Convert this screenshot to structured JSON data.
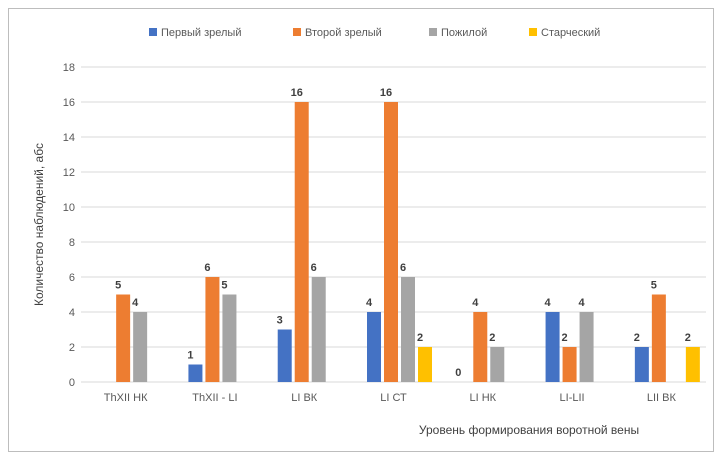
{
  "chart_data": {
    "type": "bar",
    "title": "",
    "xlabel": "Уровень формирования воротной вены",
    "ylabel": "Количество наблюдений, абс",
    "ylim": [
      0,
      18
    ],
    "yticks": [
      0,
      2,
      4,
      6,
      8,
      10,
      12,
      14,
      16,
      18
    ],
    "grid": true,
    "legend_position": "top",
    "categories": [
      "ThXII НК",
      "ThXII - LI",
      "LI ВК",
      "LI СТ",
      "LI НК",
      "LI-LII",
      "LII ВК"
    ],
    "series": [
      {
        "name": "Первый зрелый",
        "color": "#4472C4",
        "values": [
          null,
          1,
          3,
          4,
          0,
          4,
          2
        ]
      },
      {
        "name": "Второй зрелый",
        "color": "#ED7D31",
        "values": [
          5,
          6,
          16,
          16,
          4,
          2,
          5
        ]
      },
      {
        "name": "Пожилой",
        "color": "#A5A5A5",
        "values": [
          4,
          5,
          6,
          6,
          2,
          4,
          null
        ]
      },
      {
        "name": "Старческий",
        "color": "#FFC000",
        "values": [
          null,
          null,
          null,
          2,
          null,
          null,
          2
        ]
      }
    ]
  }
}
